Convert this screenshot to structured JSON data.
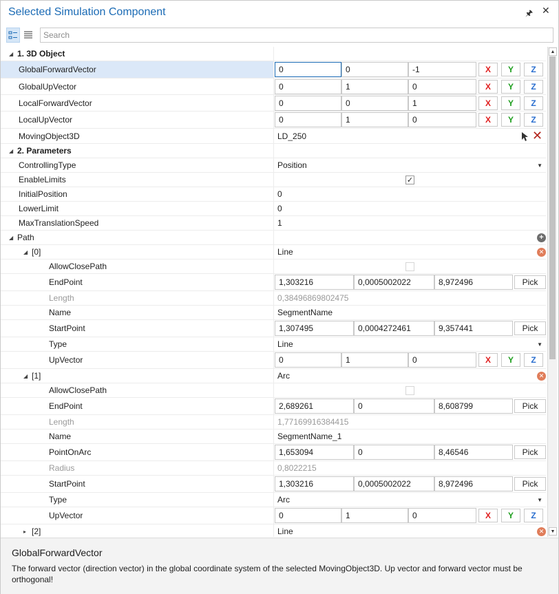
{
  "window": {
    "title": "Selected Simulation Component"
  },
  "search": {
    "placeholder": "Search"
  },
  "axis": {
    "x": "X",
    "y": "Y",
    "z": "Z"
  },
  "pick_label": "Pick",
  "groups": {
    "object3d": "1. 3D Object",
    "parameters": "2. Parameters"
  },
  "props": {
    "gfv": {
      "label": "GlobalForwardVector",
      "x": "0",
      "y": "0",
      "z": "-1"
    },
    "guv": {
      "label": "GlobalUpVector",
      "x": "0",
      "y": "1",
      "z": "0"
    },
    "lfv": {
      "label": "LocalForwardVector",
      "x": "0",
      "y": "0",
      "z": "1"
    },
    "luv": {
      "label": "LocalUpVector",
      "x": "0",
      "y": "1",
      "z": "0"
    },
    "mo": {
      "label": "MovingObject3D",
      "value": "LD_250"
    },
    "ct": {
      "label": "ControllingType",
      "value": "Position"
    },
    "el": {
      "label": "EnableLimits",
      "checked": true
    },
    "ip": {
      "label": "InitialPosition",
      "value": "0"
    },
    "ll": {
      "label": "LowerLimit",
      "value": "0"
    },
    "mts": {
      "label": "MaxTranslationSpeed",
      "value": "1"
    },
    "path": {
      "label": "Path"
    }
  },
  "segments": [
    {
      "index": "[0]",
      "kind": "Line",
      "allow_close": {
        "label": "AllowClosePath",
        "checked": false
      },
      "end_point": {
        "label": "EndPoint",
        "x": "1,303216",
        "y": "0,0005002022",
        "z": "8,972496"
      },
      "length": {
        "label": "Length",
        "value": "0,38496869802475"
      },
      "name": {
        "label": "Name",
        "value": "SegmentName"
      },
      "start_point": {
        "label": "StartPoint",
        "x": "1,307495",
        "y": "0,0004272461",
        "z": "9,357441"
      },
      "type": {
        "label": "Type",
        "value": "Line"
      },
      "up_vector": {
        "label": "UpVector",
        "x": "0",
        "y": "1",
        "z": "0"
      }
    },
    {
      "index": "[1]",
      "kind": "Arc",
      "allow_close": {
        "label": "AllowClosePath",
        "checked": false
      },
      "end_point": {
        "label": "EndPoint",
        "x": "2,689261",
        "y": "0",
        "z": "8,608799"
      },
      "length": {
        "label": "Length",
        "value": "1,77169916384415"
      },
      "name": {
        "label": "Name",
        "value": "SegmentName_1"
      },
      "point_on_arc": {
        "label": "PointOnArc",
        "x": "1,653094",
        "y": "0",
        "z": "8,46546"
      },
      "radius": {
        "label": "Radius",
        "value": "0,8022215"
      },
      "start_point": {
        "label": "StartPoint",
        "x": "1,303216",
        "y": "0,0005002022",
        "z": "8,972496"
      },
      "type": {
        "label": "Type",
        "value": "Arc"
      },
      "up_vector": {
        "label": "UpVector",
        "x": "0",
        "y": "1",
        "z": "0"
      }
    },
    {
      "index": "[2]",
      "kind": "Line"
    }
  ],
  "description": {
    "title": "GlobalForwardVector",
    "text": "The forward vector (direction vector) in the global coordinate system of the selected MovingObject3D. Up vector and forward vector must be orthogonal!"
  },
  "icons": {
    "pin": "pin-icon",
    "close": "close-icon",
    "categorized": "categorized-view-icon",
    "list": "list-view-icon",
    "picker": "picker-icon",
    "remove": "remove-icon",
    "add": "add-icon"
  },
  "colors": {
    "title": "#1b6bb5",
    "axis_x": "#e02020",
    "axis_y": "#1e9e1e",
    "axis_z": "#2b6fcf",
    "selection": "#dbe8f8"
  }
}
